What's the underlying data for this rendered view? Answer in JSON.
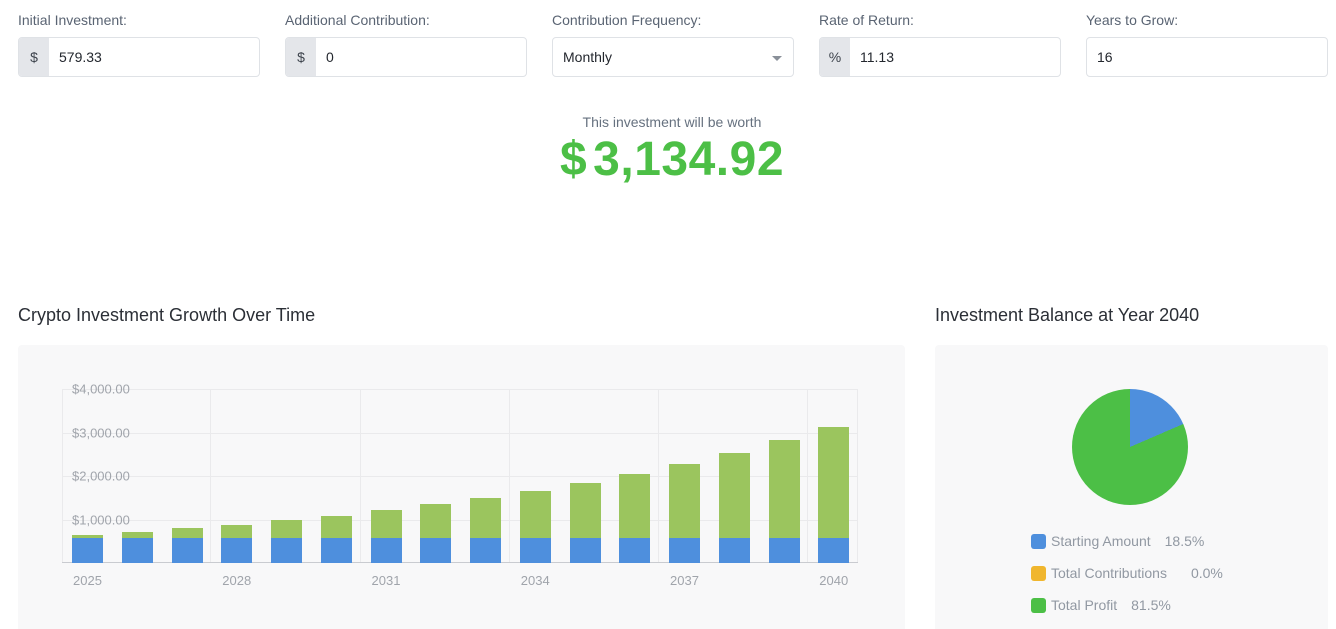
{
  "inputs": {
    "initial_investment": {
      "label": "Initial Investment:",
      "prefix": "$",
      "value": "579.33"
    },
    "additional_contribution": {
      "label": "Additional Contribution:",
      "prefix": "$",
      "value": "0"
    },
    "contribution_frequency": {
      "label": "Contribution Frequency:",
      "value": "Monthly"
    },
    "rate_of_return": {
      "label": "Rate of Return:",
      "prefix": "%",
      "value": "11.13"
    },
    "years_to_grow": {
      "label": "Years to Grow:",
      "value": "16"
    }
  },
  "result": {
    "caption": "This investment will be worth",
    "currency": "$",
    "amount": "3,134.92",
    "color": "#4cbf46"
  },
  "bar_section": {
    "title": "Crypto Investment Growth Over Time"
  },
  "pie_section": {
    "title": "Investment Balance at Year 2040"
  },
  "colors": {
    "starting_amount": "#4e8fdd",
    "total_contributions": "#f0b62e",
    "total_profit_bar": "#9bc55e",
    "total_profit_pie": "#4cbf46"
  },
  "chart_data": [
    {
      "type": "bar",
      "stacked": true,
      "title": "Crypto Investment Growth Over Time",
      "xlabel": "",
      "ylabel": "",
      "ylim": [
        0,
        4000
      ],
      "y_ticks": [
        "$4,000.00",
        "$3,000.00",
        "$2,000.00",
        "$1,000.00"
      ],
      "x_tick_labels": [
        "2025",
        "2028",
        "2031",
        "2034",
        "2037",
        "2040"
      ],
      "grid": true,
      "categories": [
        "2025",
        "2026",
        "2027",
        "2028",
        "2029",
        "2030",
        "2031",
        "2032",
        "2033",
        "2034",
        "2035",
        "2036",
        "2037",
        "2038",
        "2039",
        "2040"
      ],
      "series": [
        {
          "name": "Starting Amount",
          "values": [
            579.33,
            579.33,
            579.33,
            579.33,
            579.33,
            579.33,
            579.33,
            579.33,
            579.33,
            579.33,
            579.33,
            579.33,
            579.33,
            579.33,
            579.33,
            579.33
          ]
        },
        {
          "name": "Total Profit",
          "values": [
            64.48,
            136.14,
            215.77,
            304.26,
            402.6,
            511.88,
            633.33,
            768.3,
            918.28,
            1084.96,
            1270.19,
            1476.04,
            1704.79,
            1959.01,
            2241.52,
            2555.59
          ]
        }
      ],
      "totals": [
        643.81,
        715.47,
        795.1,
        883.59,
        981.93,
        1091.21,
        1212.66,
        1347.63,
        1497.61,
        1664.29,
        1849.52,
        2055.37,
        2284.12,
        2538.34,
        2820.85,
        3134.92
      ]
    },
    {
      "type": "pie",
      "title": "Investment Balance at Year 2040",
      "legend_position": "bottom",
      "slices": [
        {
          "label": "Starting Amount",
          "value": 18.5,
          "display": "18.5%"
        },
        {
          "label": "Total Contributions",
          "value": 0.0,
          "display": "0.0%"
        },
        {
          "label": "Total Profit",
          "value": 81.5,
          "display": "81.5%"
        }
      ]
    }
  ]
}
